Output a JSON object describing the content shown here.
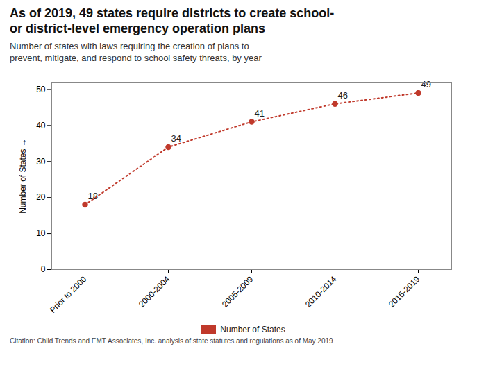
{
  "chart_data": {
    "type": "line",
    "title": "As of 2019, 49 states require districts to create school-\nor district-level emergency operation plans",
    "subtitle": "Number of states with laws requiring the creation of plans to\nprevent, mitigate, and respond to school safety threats, by year",
    "ylabel": "Number of States",
    "categories": [
      "Prior to 2000",
      "2000-2004",
      "2005-2009",
      "2010-2014",
      "2015-2019"
    ],
    "series": [
      {
        "name": "Number of States",
        "color": "#c0392b",
        "values": [
          18,
          34,
          41,
          46,
          49
        ],
        "marker": "circle",
        "line_style": "dotted"
      }
    ],
    "ylim": [
      0,
      52
    ],
    "yticks": [
      0,
      10,
      20,
      30,
      40,
      50
    ],
    "grid": false,
    "legend": "bottom",
    "data_labels": true,
    "citation": "Citation: Child Trends and EMT Associates, Inc. analysis of state statutes and regulations as of May 2019"
  }
}
